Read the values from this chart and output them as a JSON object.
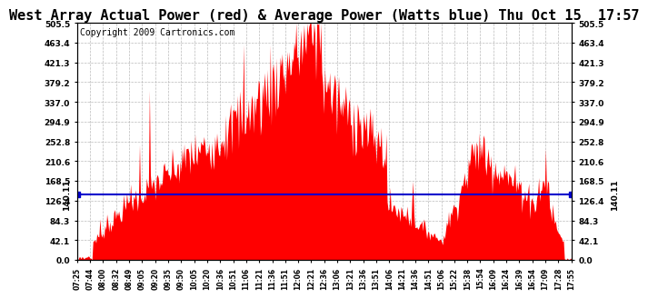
{
  "title": "West Array Actual Power (red) & Average Power (Watts blue) Thu Oct 15  17:57",
  "copyright": "Copyright 2009 Cartronics.com",
  "avg_power": 140.11,
  "ymin": 0.0,
  "ymax": 505.5,
  "yticks": [
    0.0,
    42.1,
    84.3,
    126.4,
    168.5,
    210.6,
    252.8,
    294.9,
    337.0,
    379.2,
    421.3,
    463.4,
    505.5
  ],
  "ytick_labels": [
    "0.0",
    "42.1",
    "84.3",
    "126.4",
    "168.5",
    "210.6",
    "252.8",
    "294.9",
    "337.0",
    "379.2",
    "421.3",
    "463.4",
    "505.5"
  ],
  "xtick_labels": [
    "07:25",
    "07:44",
    "08:00",
    "08:32",
    "08:49",
    "09:05",
    "09:20",
    "09:35",
    "09:50",
    "10:05",
    "10:20",
    "10:36",
    "10:51",
    "11:06",
    "11:21",
    "11:36",
    "11:51",
    "12:06",
    "12:21",
    "12:36",
    "13:06",
    "13:21",
    "13:36",
    "13:51",
    "14:06",
    "14:21",
    "14:36",
    "14:51",
    "15:06",
    "15:22",
    "15:38",
    "15:54",
    "16:09",
    "16:24",
    "16:39",
    "16:54",
    "17:09",
    "17:28",
    "17:55"
  ],
  "background_color": "#ffffff",
  "plot_bg_color": "#ffffff",
  "grid_color": "#aaaaaa",
  "area_color": "#ff0000",
  "line_color": "#0000cc",
  "title_fontsize": 11,
  "copyright_fontsize": 7
}
